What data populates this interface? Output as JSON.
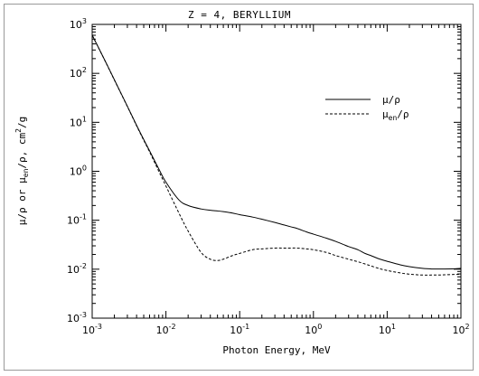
{
  "chart_data": {
    "type": "line",
    "title": "Z =  4,  BERYLLIUM",
    "xlabel": "Photon Energy, MeV",
    "ylabel": {
      "prefix": "μ/ρ  or  μ",
      "sub": "en",
      "mid": "/ρ,  cm",
      "sup": "2",
      "suffix": "/g"
    },
    "xscale": "log",
    "yscale": "log",
    "xlim": [
      0.001,
      100
    ],
    "ylim": [
      0.001,
      1000
    ],
    "xticks": [
      {
        "base": "10",
        "exp": "-3"
      },
      {
        "base": "10",
        "exp": "-2"
      },
      {
        "base": "10",
        "exp": "-1"
      },
      {
        "base": "10",
        "exp": "0"
      },
      {
        "base": "10",
        "exp": "1"
      },
      {
        "base": "10",
        "exp": "2"
      }
    ],
    "yticks": [
      {
        "base": "10",
        "exp": "-3"
      },
      {
        "base": "10",
        "exp": "-2"
      },
      {
        "base": "10",
        "exp": "-1"
      },
      {
        "base": "10",
        "exp": "0"
      },
      {
        "base": "10",
        "exp": "1"
      },
      {
        "base": "10",
        "exp": "2"
      },
      {
        "base": "10",
        "exp": "3"
      }
    ],
    "grid": false,
    "legend_position": "top-right",
    "series": [
      {
        "name": "μ/ρ",
        "style": "solid",
        "color": "#000000",
        "x": [
          0.001,
          0.0015,
          0.002,
          0.003,
          0.004,
          0.005,
          0.006,
          0.008,
          0.01,
          0.015,
          0.02,
          0.03,
          0.04,
          0.05,
          0.06,
          0.08,
          0.1,
          0.15,
          0.2,
          0.3,
          0.4,
          0.5,
          0.6,
          0.8,
          1,
          1.5,
          2,
          3,
          4,
          5,
          6,
          8,
          10,
          15,
          20,
          30,
          40,
          50,
          60,
          80,
          100
        ],
        "y": [
          604,
          179,
          74,
          21.3,
          8.7,
          4.45,
          2.62,
          1.12,
          0.6,
          0.26,
          0.2,
          0.17,
          0.16,
          0.155,
          0.15,
          0.14,
          0.13,
          0.116,
          0.105,
          0.09,
          0.08,
          0.073,
          0.068,
          0.058,
          0.052,
          0.043,
          0.037,
          0.029,
          0.025,
          0.021,
          0.019,
          0.016,
          0.0145,
          0.0123,
          0.0113,
          0.0104,
          0.0101,
          0.0101,
          0.0101,
          0.0102,
          0.0104
        ]
      },
      {
        "name": "μen/ρ",
        "name_parts": {
          "prefix": "μ",
          "sub": "en",
          "suffix": "/ρ"
        },
        "style": "dashed",
        "color": "#000000",
        "x": [
          0.001,
          0.0015,
          0.002,
          0.003,
          0.004,
          0.005,
          0.006,
          0.008,
          0.01,
          0.015,
          0.02,
          0.03,
          0.04,
          0.05,
          0.06,
          0.08,
          0.1,
          0.15,
          0.2,
          0.3,
          0.4,
          0.5,
          0.6,
          0.8,
          1,
          1.5,
          2,
          3,
          4,
          5,
          6,
          8,
          10,
          15,
          20,
          30,
          40,
          50,
          60,
          80,
          100
        ],
        "y": [
          603,
          178,
          73,
          21,
          8.5,
          4.3,
          2.5,
          1.0,
          0.5,
          0.14,
          0.06,
          0.022,
          0.016,
          0.015,
          0.016,
          0.019,
          0.021,
          0.025,
          0.026,
          0.027,
          0.027,
          0.027,
          0.027,
          0.026,
          0.025,
          0.022,
          0.019,
          0.016,
          0.0142,
          0.0128,
          0.0117,
          0.0102,
          0.0094,
          0.0084,
          0.0079,
          0.0076,
          0.0076,
          0.0076,
          0.0077,
          0.0078,
          0.0079
        ]
      }
    ]
  }
}
